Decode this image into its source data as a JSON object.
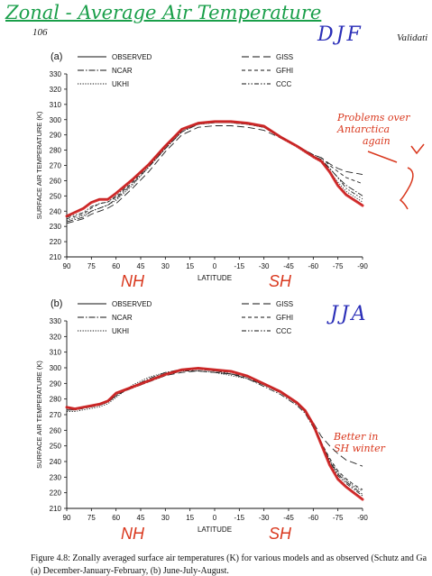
{
  "annotations": {
    "handwritten_title": "Zonal - Average Air Temperature",
    "page_number": "106",
    "running_head": "Validati",
    "season_a": "DJF",
    "season_b": "JJA",
    "note_a": [
      "Problems over",
      "Antarctica",
      "again"
    ],
    "note_b": [
      "Better in",
      "SH winter"
    ],
    "hemisphere_labels": {
      "nh": "NH",
      "sh": "SH"
    }
  },
  "caption": {
    "line1": "Figure 4.8:  Zonally averaged surface air temperatures (K) for various models and as observed (Schutz and Ga",
    "line2": "(a) December-January-February,  (b) June-July-August."
  },
  "colors": {
    "highlight": "#d42020",
    "annotation_red": "#d9381e",
    "annotation_blue": "#2b2fb8",
    "title_green": "#1a9f4a"
  },
  "chart_data": [
    {
      "type": "line",
      "panel_label": "(a)",
      "title": "",
      "xlabel": "LATITUDE",
      "ylabel": "SURFACE AIR TEMPERATURE (K)",
      "x_ticks": [
        "90",
        "75",
        "60",
        "45",
        "30",
        "15",
        "0",
        "-15",
        "-30",
        "-45",
        "-60",
        "-75",
        "-90"
      ],
      "y_ticks": [
        "330",
        "320",
        "310",
        "300",
        "290",
        "280",
        "270",
        "260",
        "250",
        "240",
        "230",
        "220",
        "210"
      ],
      "xlim": [
        90,
        -90
      ],
      "ylim": [
        210,
        330
      ],
      "legend": [
        "OBSERVED",
        "NCAR",
        "UKHI",
        "GISS",
        "GFHI",
        "CCC"
      ],
      "x": [
        90,
        80,
        75,
        70,
        65,
        60,
        50,
        40,
        30,
        20,
        10,
        0,
        -10,
        -20,
        -30,
        -40,
        -50,
        -60,
        -65,
        -70,
        -75,
        -80,
        -90
      ],
      "series": [
        {
          "name": "OBSERVED",
          "values": [
            237,
            242,
            246,
            248,
            248,
            252,
            261,
            271,
            283,
            294,
            298,
            299,
            299,
            298,
            296,
            289,
            283,
            276,
            273,
            266,
            257,
            251,
            244
          ]
        },
        {
          "name": "NCAR",
          "values": [
            233,
            236,
            240,
            242,
            244,
            248,
            258,
            269,
            281,
            292,
            297,
            298,
            298,
            297,
            295,
            289,
            283,
            276,
            274,
            268,
            262,
            257,
            250
          ]
        },
        {
          "name": "UKHI",
          "values": [
            234,
            237,
            240,
            242,
            244,
            247,
            257,
            269,
            281,
            292,
            297,
            298,
            298,
            297,
            295,
            288,
            282,
            275,
            272,
            266,
            259,
            253,
            246
          ]
        },
        {
          "name": "GISS",
          "values": [
            232,
            235,
            238,
            240,
            242,
            245,
            255,
            266,
            279,
            290,
            295,
            296,
            296,
            295,
            293,
            288,
            283,
            277,
            275,
            271,
            268,
            266,
            264
          ]
        },
        {
          "name": "GFHI",
          "values": [
            235,
            238,
            242,
            245,
            246,
            249,
            259,
            270,
            282,
            293,
            297,
            298,
            298,
            297,
            295,
            289,
            283,
            277,
            275,
            270,
            266,
            262,
            258
          ]
        },
        {
          "name": "CCC",
          "values": [
            236,
            239,
            243,
            245,
            246,
            250,
            260,
            270,
            282,
            293,
            297,
            298,
            298,
            297,
            295,
            289,
            283,
            276,
            273,
            268,
            262,
            255,
            248
          ]
        }
      ]
    },
    {
      "type": "line",
      "panel_label": "(b)",
      "title": "",
      "xlabel": "LATITUDE",
      "ylabel": "SURFACE AIR TEMPERATURE (K)",
      "x_ticks": [
        "90",
        "75",
        "60",
        "45",
        "30",
        "15",
        "0",
        "-15",
        "-30",
        "-45",
        "-60",
        "-75",
        "-90"
      ],
      "y_ticks": [
        "330",
        "320",
        "310",
        "300",
        "290",
        "280",
        "270",
        "260",
        "250",
        "240",
        "230",
        "220",
        "210"
      ],
      "xlim": [
        90,
        -90
      ],
      "ylim": [
        210,
        330
      ],
      "legend": [
        "OBSERVED",
        "NCAR",
        "UKHI",
        "GISS",
        "GFHI",
        "CCC"
      ],
      "x": [
        90,
        85,
        80,
        75,
        70,
        65,
        60,
        50,
        40,
        30,
        20,
        10,
        0,
        -10,
        -20,
        -30,
        -40,
        -50,
        -55,
        -60,
        -65,
        -70,
        -75,
        -80,
        -85,
        -90
      ],
      "series": [
        {
          "name": "OBSERVED",
          "values": [
            275,
            274,
            275,
            276,
            277,
            279,
            284,
            288,
            292,
            296,
            299,
            300,
            299,
            298,
            295,
            290,
            285,
            278,
            273,
            264,
            251,
            238,
            229,
            224,
            220,
            216
          ]
        },
        {
          "name": "NCAR",
          "values": [
            273,
            273,
            274,
            275,
            276,
            278,
            282,
            288,
            293,
            297,
            299,
            299,
            298,
            296,
            293,
            288,
            283,
            276,
            271,
            262,
            251,
            240,
            232,
            227,
            223,
            219
          ]
        },
        {
          "name": "UKHI",
          "values": [
            272,
            272,
            273,
            274,
            275,
            277,
            281,
            289,
            294,
            297,
            298,
            298,
            297,
            295,
            293,
            289,
            284,
            277,
            272,
            263,
            252,
            241,
            233,
            228,
            224,
            221
          ]
        },
        {
          "name": "GISS",
          "values": [
            274,
            274,
            275,
            275,
            276,
            278,
            283,
            287,
            291,
            295,
            297,
            298,
            297,
            296,
            294,
            289,
            284,
            277,
            272,
            265,
            256,
            250,
            245,
            241,
            239,
            237
          ]
        },
        {
          "name": "GFHI",
          "values": [
            273,
            273,
            274,
            275,
            276,
            278,
            282,
            288,
            292,
            296,
            298,
            298,
            297,
            296,
            293,
            289,
            284,
            277,
            272,
            263,
            252,
            242,
            234,
            229,
            225,
            222
          ]
        },
        {
          "name": "CCC",
          "values": [
            274,
            274,
            275,
            276,
            277,
            279,
            283,
            287,
            291,
            295,
            298,
            299,
            298,
            297,
            294,
            290,
            285,
            278,
            273,
            264,
            252,
            240,
            231,
            226,
            222,
            218
          ]
        }
      ]
    }
  ]
}
